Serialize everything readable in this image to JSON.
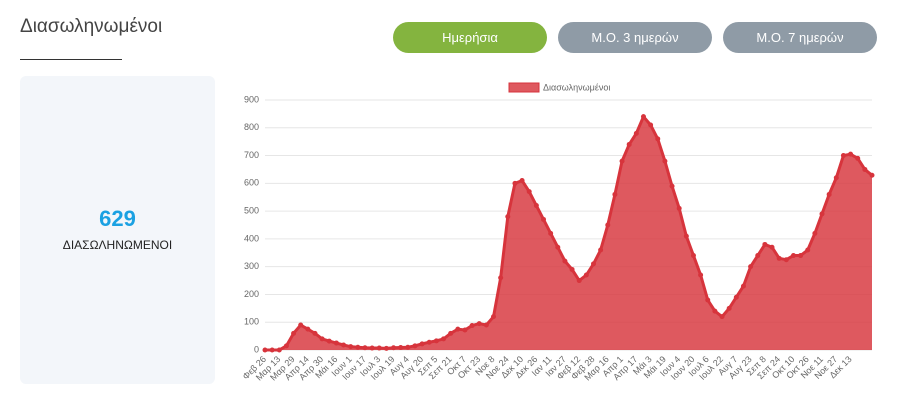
{
  "header": {
    "title": "Διασωληνωμένοι"
  },
  "buttons": [
    {
      "label": "Ημερήσια",
      "color": "#84b43f"
    },
    {
      "label": "Μ.Ο. 3 ημερών",
      "color": "#8f9ba6"
    },
    {
      "label": "Μ.Ο. 7 ημερών",
      "color": "#8f9ba6"
    }
  ],
  "summary": {
    "value": 629,
    "label": "ΔΙΑΣΩΛΗΝΩΜΕΝΟΙ"
  },
  "chart_data": {
    "type": "area",
    "categories": [
      "Φεβ 26",
      null,
      "Μαρ 13",
      null,
      "Μαρ 29",
      null,
      "Απρ 14",
      null,
      "Απρ 30",
      null,
      "Μάι 16",
      null,
      "Ιουν 1",
      null,
      "Ιουν 17",
      null,
      "Ιουλ 3",
      null,
      "Ιουλ 19",
      null,
      "Αυγ 4",
      null,
      "Αυγ 20",
      null,
      "Σεπ 5",
      null,
      "Σεπ 21",
      null,
      "Οκτ 7",
      null,
      "Οκτ 23",
      null,
      "Νοε 8",
      null,
      "Νοε 24",
      null,
      "Δεκ 10",
      null,
      "Δεκ 26",
      null,
      "Ιαν 11",
      null,
      "Ιαν 27",
      null,
      "Φεβ 12",
      null,
      "Φεβ 28",
      null,
      "Μαρ 16",
      null,
      "Απρ 1",
      null,
      "Απρ 17",
      null,
      "Μάι 3",
      null,
      "Μάι 19",
      null,
      "Ιουν 4",
      null,
      "Ιουν 20",
      null,
      "Ιουλ 6",
      null,
      "Ιουλ 22",
      null,
      "Αυγ 7",
      null,
      "Αυγ 23",
      null,
      "Σεπ 8",
      null,
      "Σεπ 24",
      null,
      "Οκτ 10",
      null,
      "Οκτ 26",
      null,
      "Νοε 11",
      null,
      "Νοε 27",
      null,
      "Δεκ 13",
      null,
      null,
      null
    ],
    "series": [
      {
        "name": "Διασωληνωμένοι",
        "color": "#d7343c",
        "values": [
          0,
          0,
          0,
          15,
          60,
          90,
          75,
          60,
          40,
          32,
          25,
          18,
          12,
          10,
          8,
          7,
          7,
          6,
          8,
          9,
          10,
          15,
          22,
          28,
          33,
          40,
          60,
          75,
          72,
          88,
          95,
          90,
          120,
          260,
          480,
          600,
          610,
          570,
          520,
          470,
          420,
          370,
          320,
          290,
          250,
          270,
          310,
          360,
          450,
          560,
          680,
          740,
          780,
          840,
          810,
          760,
          680,
          590,
          510,
          410,
          340,
          270,
          180,
          140,
          120,
          150,
          190,
          230,
          300,
          340,
          380,
          370,
          330,
          325,
          340,
          340,
          360,
          420,
          490,
          560,
          620,
          700,
          705,
          690,
          650,
          629
        ]
      }
    ],
    "ylim": [
      0,
      900
    ],
    "yticks": [
      0,
      100,
      200,
      300,
      400,
      500,
      600,
      700,
      800,
      900
    ],
    "grid": true
  }
}
